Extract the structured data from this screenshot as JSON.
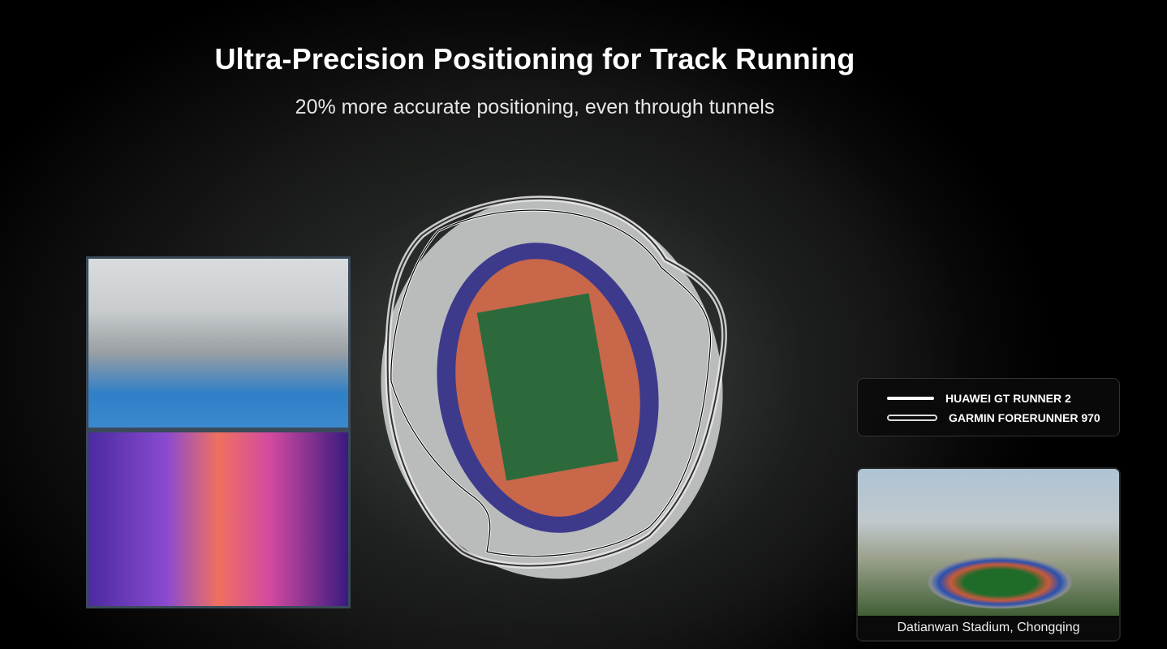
{
  "slide": {
    "title": "Ultra-Precision Positioning for Track Running",
    "subtitle": "20% more accurate positioning, even through tunnels"
  },
  "legend": {
    "items": [
      {
        "label": "HUAWEI GT RUNNER 2",
        "style": "solid-white"
      },
      {
        "label": "GARMIN FORERUNNER 970",
        "style": "outlined"
      }
    ]
  },
  "location_card": {
    "caption": "Datianwan Stadium, Chongqing"
  },
  "colors": {
    "track": "#c8674a",
    "outer_track": "#3d3a8c",
    "pitch": "#2c6a3c",
    "background": "#000000"
  }
}
